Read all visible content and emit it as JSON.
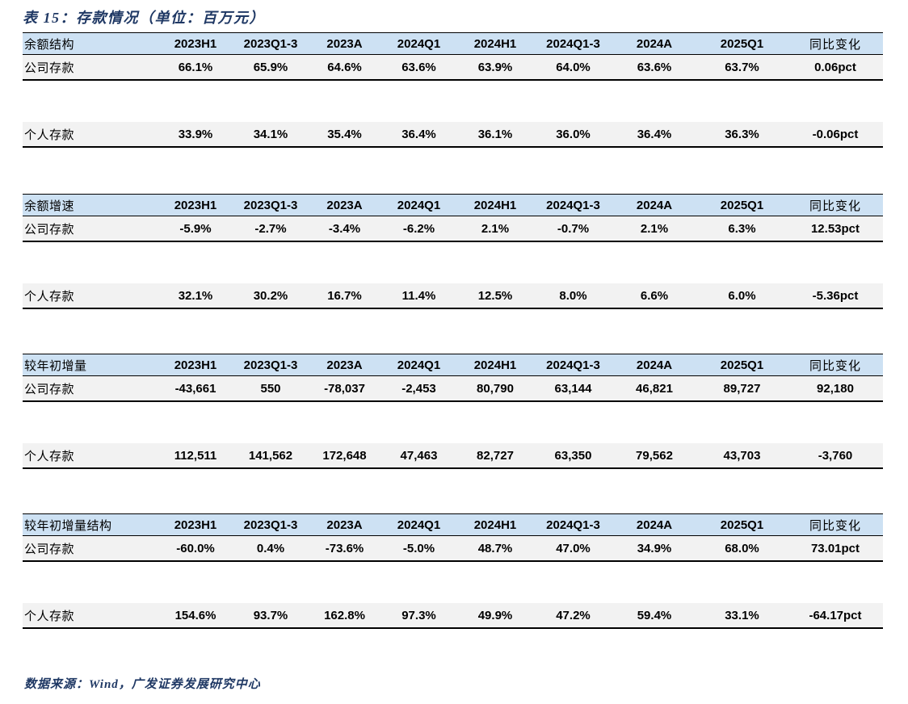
{
  "title": "表 15：存款情况（单位：百万元）",
  "source": "数据来源：Wind，广发证券发展研究中心",
  "colors": {
    "caption_color": "#1F3864",
    "header_bg": "#CDE1F3",
    "row_bg": "#F2F2F2",
    "border_color": "#000000",
    "text_color": "#000000"
  },
  "columns": [
    "2023H1",
    "2023Q1-3",
    "2023A",
    "2024Q1",
    "2024H1",
    "2024Q1-3",
    "2024A",
    "2025Q1",
    "同比变化"
  ],
  "sections": [
    {
      "label": "余额结构",
      "rows": [
        {
          "label": "公司存款",
          "values": [
            "66.1%",
            "65.9%",
            "64.6%",
            "63.6%",
            "63.9%",
            "64.0%",
            "63.6%",
            "63.7%",
            "0.06pct"
          ]
        },
        {
          "label": "个人存款",
          "values": [
            "33.9%",
            "34.1%",
            "35.4%",
            "36.4%",
            "36.1%",
            "36.0%",
            "36.4%",
            "36.3%",
            "-0.06pct"
          ]
        }
      ]
    },
    {
      "label": "余额增速",
      "rows": [
        {
          "label": "公司存款",
          "values": [
            "-5.9%",
            "-2.7%",
            "-3.4%",
            "-6.2%",
            "2.1%",
            "-0.7%",
            "2.1%",
            "6.3%",
            "12.53pct"
          ]
        },
        {
          "label": "个人存款",
          "values": [
            "32.1%",
            "30.2%",
            "16.7%",
            "11.4%",
            "12.5%",
            "8.0%",
            "6.6%",
            "6.0%",
            "-5.36pct"
          ]
        }
      ]
    },
    {
      "label": "较年初增量",
      "rows": [
        {
          "label": "公司存款",
          "values": [
            "-43,661",
            "550",
            "-78,037",
            "-2,453",
            "80,790",
            "63,144",
            "46,821",
            "89,727",
            "92,180"
          ]
        },
        {
          "label": "个人存款",
          "values": [
            "112,511",
            "141,562",
            "172,648",
            "47,463",
            "82,727",
            "63,350",
            "79,562",
            "43,703",
            "-3,760"
          ]
        }
      ]
    },
    {
      "label": "较年初增量结构",
      "rows": [
        {
          "label": "公司存款",
          "values": [
            "-60.0%",
            "0.4%",
            "-73.6%",
            "-5.0%",
            "48.7%",
            "47.0%",
            "34.9%",
            "68.0%",
            "73.01pct"
          ]
        },
        {
          "label": "个人存款",
          "values": [
            "154.6%",
            "93.7%",
            "162.8%",
            "97.3%",
            "49.9%",
            "47.2%",
            "59.4%",
            "33.1%",
            "-64.17pct"
          ]
        }
      ]
    }
  ]
}
